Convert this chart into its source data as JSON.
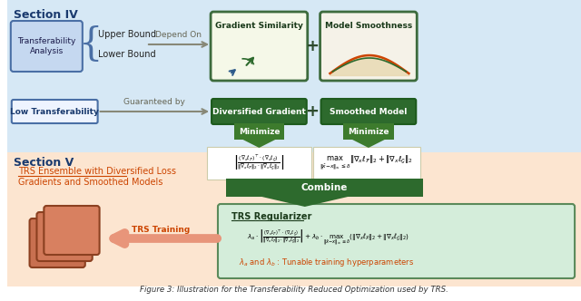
{
  "fig_width": 6.4,
  "fig_height": 3.32,
  "section4_label": "Section IV",
  "section5_label": "Section V",
  "transferability_box": "Transferability\nAnalysis",
  "upper_bound": "Upper Bound",
  "lower_bound": "Lower Bound",
  "depend_on": "Depend On",
  "gradient_sim_label": "Gradient Similarity",
  "model_smooth_label": "Model Smoothness",
  "low_trans_label": "Low Transferability",
  "guaranteed_by": "Guaranteed by",
  "div_grad_label": "Diversified Gradient",
  "smoothed_model_label": "Smoothed Model",
  "minimize1": "Minimize",
  "minimize2": "Minimize",
  "combine_label": "Combine",
  "trs_ensemble_label": "TRS Ensemble with Diversified Loss\nGradients and Smoothed Models",
  "trs_regularizer_title": "TRS Regularizer",
  "lambda_note": "$\\lambda_a$ and $\\lambda_b$ : Tunable training hyperparameters",
  "trs_training_label": "TRS Training",
  "fig_caption": "Figure 3: Illustration for the Transferability Reduced Optimization used by TRS.",
  "bg_top": "#d6e8f5",
  "bg_bottom": "#fce5d0",
  "color_dark_green": "#2d6a2d",
  "color_med_green": "#3d7b2d",
  "color_green_border": "#3d6b3d",
  "color_light_green": "#d4edda",
  "color_blue_box": "#c5d8f0",
  "color_blue_border": "#4a6fa5",
  "color_orange": "#cc4400",
  "color_salmon": "#e8957a",
  "color_gray": "#888877",
  "color_white": "#ffffff",
  "color_cream1": "#f5f8e8",
  "color_cream2": "#f5f2e8",
  "color_dark_text": "#1a3a1a",
  "color_blue_text": "#1a3a6e",
  "nn_colors": [
    "#c87050",
    "#d07858",
    "#d88060"
  ],
  "nn_ec": "#8b4020"
}
